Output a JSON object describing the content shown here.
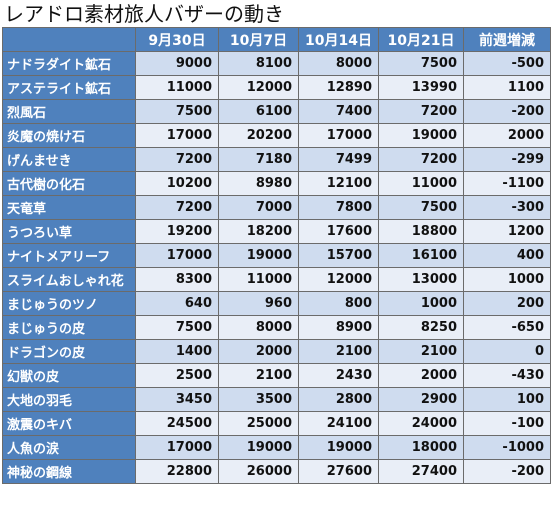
{
  "title": "レアドロ素材旅人バザーの動き",
  "headers": [
    "",
    "9月30日",
    "10月7日",
    "10月14日",
    "10月21日",
    "前週増減"
  ],
  "rows": [
    {
      "name": "ナドラダイト鉱石",
      "values": [
        "9000",
        "8100",
        "8000",
        "7500",
        "-500"
      ]
    },
    {
      "name": "アステライト鉱石",
      "values": [
        "11000",
        "12000",
        "12890",
        "13990",
        "1100"
      ]
    },
    {
      "name": "烈風石",
      "values": [
        "7500",
        "6100",
        "7400",
        "7200",
        "-200"
      ]
    },
    {
      "name": "炎魔の焼け石",
      "values": [
        "17000",
        "20200",
        "17000",
        "19000",
        "2000"
      ]
    },
    {
      "name": "げんませき",
      "values": [
        "7200",
        "7180",
        "7499",
        "7200",
        "-299"
      ]
    },
    {
      "name": "古代樹の化石",
      "values": [
        "10200",
        "8980",
        "12100",
        "11000",
        "-1100"
      ]
    },
    {
      "name": "天竜草",
      "values": [
        "7200",
        "7000",
        "7800",
        "7500",
        "-300"
      ]
    },
    {
      "name": "うつろい草",
      "values": [
        "19200",
        "18200",
        "17600",
        "18800",
        "1200"
      ]
    },
    {
      "name": "ナイトメアリーフ",
      "values": [
        "17000",
        "19000",
        "15700",
        "16100",
        "400"
      ]
    },
    {
      "name": "スライムおしゃれ花",
      "values": [
        "8300",
        "11000",
        "12000",
        "13000",
        "1000"
      ]
    },
    {
      "name": "まじゅうのツノ",
      "values": [
        "640",
        "960",
        "800",
        "1000",
        "200"
      ]
    },
    {
      "name": "まじゅうの皮",
      "values": [
        "7500",
        "8000",
        "8900",
        "8250",
        "-650"
      ]
    },
    {
      "name": "ドラゴンの皮",
      "values": [
        "1400",
        "2000",
        "2100",
        "2100",
        "0"
      ]
    },
    {
      "name": "幻獣の皮",
      "values": [
        "2500",
        "2100",
        "2430",
        "2000",
        "-430"
      ]
    },
    {
      "name": "大地の羽毛",
      "values": [
        "3450",
        "3500",
        "2800",
        "2900",
        "100"
      ]
    },
    {
      "name": "激震のキバ",
      "values": [
        "24500",
        "25000",
        "24100",
        "24000",
        "-100"
      ]
    },
    {
      "name": "人魚の涙",
      "values": [
        "17000",
        "19000",
        "19000",
        "18000",
        "-1000"
      ]
    },
    {
      "name": "神秘の鋼線",
      "values": [
        "22800",
        "26000",
        "27600",
        "27400",
        "-200"
      ]
    }
  ]
}
